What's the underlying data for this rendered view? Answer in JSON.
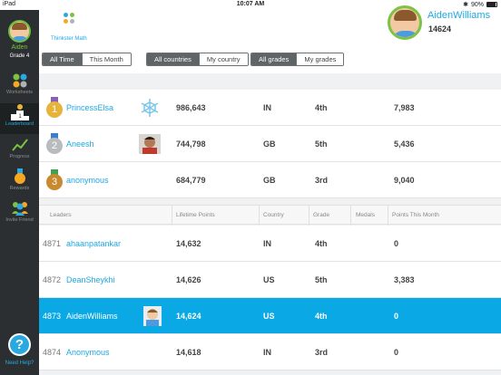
{
  "status_bar": {
    "carrier": "iPad",
    "time": "10:07 AM",
    "battery": "90%"
  },
  "sidebar": {
    "user_name": "Aiden",
    "grade": "Grade 4",
    "items": [
      {
        "label": "Worksheets",
        "icon": "worksheets-dots-icon"
      },
      {
        "label": "Leaderboard",
        "icon": "podium-icon",
        "active": true
      },
      {
        "label": "Progress",
        "icon": "progress-chart-icon"
      },
      {
        "label": "Rewards",
        "icon": "medal-icon"
      },
      {
        "label": "Invite Friend",
        "icon": "invite-friends-icon"
      }
    ],
    "help_label": "Need Help?",
    "help_symbol": "?"
  },
  "header": {
    "logo_text": "Thinkster Math",
    "user_name": "AidenWilliams",
    "user_points": "14624",
    "filters": {
      "time": [
        "All Time",
        "This Month"
      ],
      "countries": [
        "All countries",
        "My country"
      ],
      "grades": [
        "All grades",
        "My grades"
      ]
    }
  },
  "top3": [
    {
      "rank": "1",
      "name": "PrincessElsa",
      "points": "986,643",
      "country": "IN",
      "grade": "4th",
      "month": "7,983",
      "medal_color": "#e8b33a"
    },
    {
      "rank": "2",
      "name": "Aneesh",
      "points": "744,798",
      "country": "GB",
      "grade": "5th",
      "month": "5,436",
      "medal_color": "#b9bcbf"
    },
    {
      "rank": "3",
      "name": "anonymous",
      "points": "684,779",
      "country": "GB",
      "grade": "3rd",
      "month": "9,040",
      "medal_color": "#c8892f"
    }
  ],
  "table_headers": [
    "Leaders",
    "Lifetime Points",
    "Country",
    "Grade",
    "Medals",
    "Points This Month"
  ],
  "leaders": [
    {
      "rank": "4871",
      "name": "ahaanpatankar",
      "points": "14,632",
      "country": "IN",
      "grade": "4th",
      "month": "0"
    },
    {
      "rank": "4872",
      "name": "DeanSheykhi",
      "points": "14,626",
      "country": "US",
      "grade": "5th",
      "month": "3,383"
    },
    {
      "rank": "4873",
      "name": "AidenWilliams",
      "points": "14,624",
      "country": "US",
      "grade": "4th",
      "month": "0"
    },
    {
      "rank": "4874",
      "name": "Anonymous",
      "points": "14,618",
      "country": "IN",
      "grade": "3rd",
      "month": "0"
    }
  ]
}
